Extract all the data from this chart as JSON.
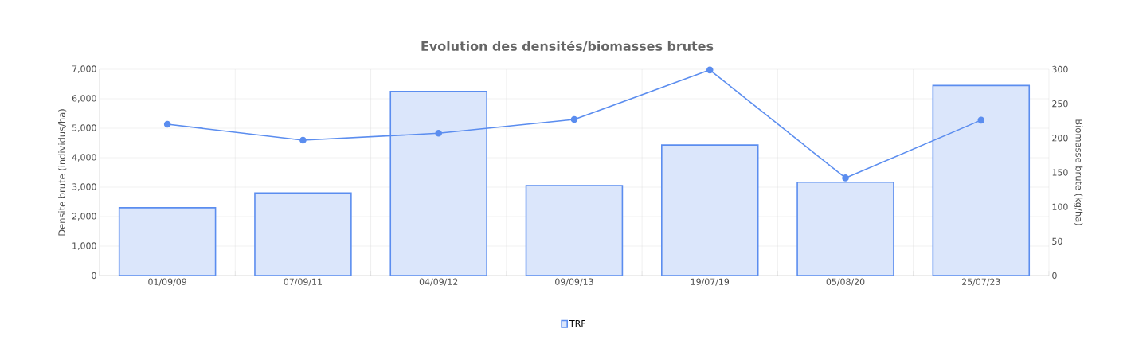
{
  "chart_data": {
    "type": "bar",
    "title": "Evolution des densités/biomasses brutes",
    "ylabel": "Densite brute (individus/ha)",
    "y2label": "Biomasse brute (kg/ha)",
    "categories": [
      "01/09/09",
      "07/09/11",
      "04/09/12",
      "09/09/13",
      "19/07/19",
      "05/08/20",
      "25/07/23"
    ],
    "series": [
      {
        "name": "TRF",
        "color": "#dbe6fb",
        "values": [
          2300,
          2800,
          6250,
          3050,
          4430,
          3170,
          6450
        ]
      },
      {
        "type": "line",
        "axis": "y2",
        "color": "#5b8def",
        "values": [
          220,
          197,
          207,
          227,
          299,
          142,
          226
        ]
      }
    ],
    "ylim": [
      0,
      7000
    ],
    "yticks": [
      0,
      {
        "value": 1000,
        "label": "1,000"
      },
      {
        "value": 2000,
        "label": "2,000"
      },
      {
        "value": 3000,
        "label": "3,000"
      },
      {
        "value": 4000,
        "label": "4,000"
      },
      {
        "value": 5000,
        "label": "5,000"
      },
      {
        "value": 6000,
        "label": "6,000"
      },
      {
        "value": 7000,
        "label": "7,000"
      }
    ],
    "y2lim": [
      0,
      300
    ],
    "y2ticks": [
      0,
      50,
      100,
      150,
      200,
      250,
      300
    ],
    "grid": true,
    "legend": "bottom",
    "marker": "circle"
  }
}
